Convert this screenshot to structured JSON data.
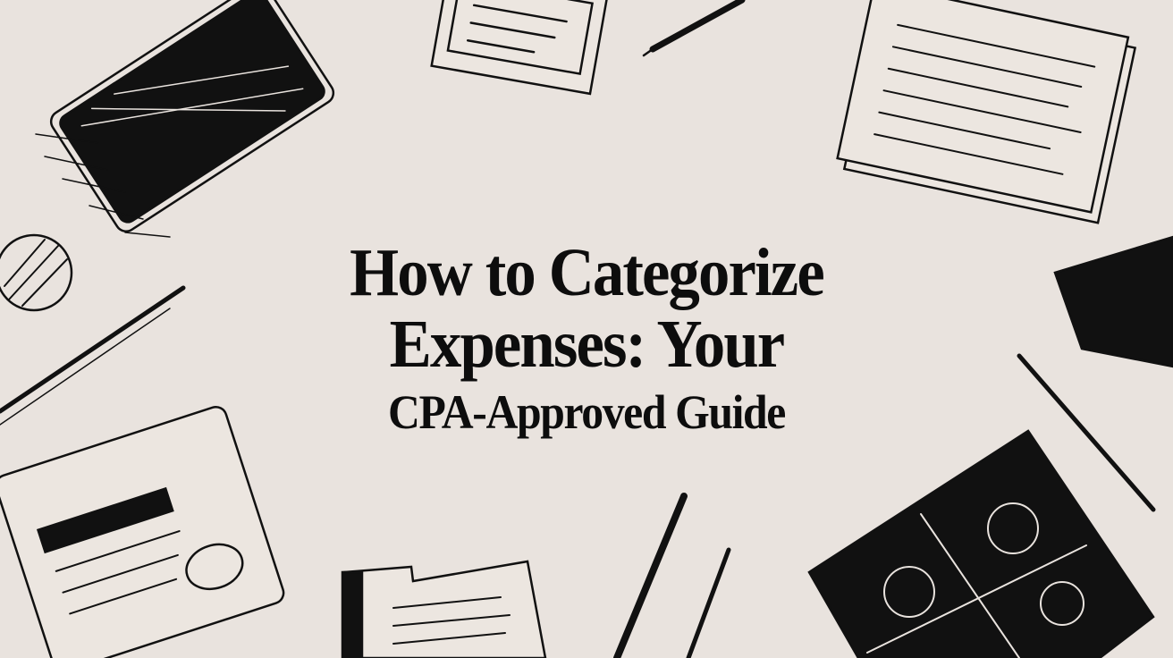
{
  "title": {
    "line1": "How to Categorize",
    "line2": "Expenses: Your",
    "line3": "CPA-Approved Guide"
  },
  "colors": {
    "background": "#e9e3de",
    "ink": "#0d0d0d"
  },
  "illustration_objects": [
    "tablet-icon",
    "document-icon",
    "pencil-icon",
    "stacked-papers-icon",
    "ball-icon",
    "notepad-icon",
    "folder-icon",
    "calculator-icon"
  ]
}
